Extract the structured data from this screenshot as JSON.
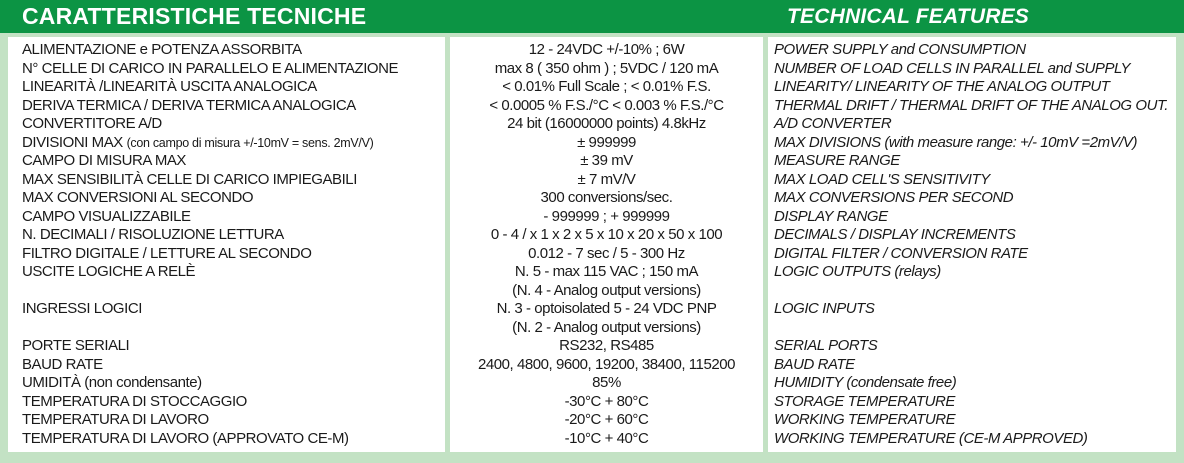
{
  "header": {
    "left_title": "CARATTERISTICHE TECNICHE",
    "right_title": "TECHNICAL FEATURES"
  },
  "colors": {
    "header_green": "#0c9444",
    "background_green": "#c3e2c4"
  },
  "rows": [
    {
      "it": "ALIMENTAZIONE e POTENZA ASSORBITA",
      "value": "12 - 24VDC  +/-10% ; 6W",
      "en": "POWER SUPPLY and CONSUMPTION"
    },
    {
      "it": "N° CELLE DI CARICO IN PARALLELO E ALIMENTAZIONE",
      "value": "max 8 ( 350 ohm ) ; 5VDC / 120 mA",
      "en": "NUMBER OF LOAD CELLS IN PARALLEL and SUPPLY"
    },
    {
      "it": "LINEARITÀ /LINEARITÀ USCITA ANALOGICA",
      "value": "< 0.01% Full Scale ; < 0.01% F.S.",
      "en": "LINEARITY/ LINEARITY OF THE ANALOG OUTPUT"
    },
    {
      "it": "DERIVA TERMICA / DERIVA TERMICA ANALOGICA",
      "value": "< 0.0005 % F.S./°C < 0.003 % F.S./°C",
      "en": "THERMAL DRIFT / THERMAL DRIFT OF THE ANALOG OUT."
    },
    {
      "it": "CONVERTITORE A/D",
      "value": "24 bit (16000000 points) 4.8kHz",
      "en": "A/D CONVERTER"
    },
    {
      "it": "DIVISIONI MAX",
      "it_note": "(con campo di misura +/-10mV = sens. 2mV/V)",
      "value": "± 999999",
      "en": "MAX DIVISIONS (with measure range: +/- 10mV =2mV/V)"
    },
    {
      "it": "CAMPO DI MISURA MAX",
      "value": "± 39 mV",
      "en": "MEASURE RANGE"
    },
    {
      "it": "MAX SENSIBILITÀ CELLE DI CARICO IMPIEGABILI",
      "value": "± 7 mV/V",
      "en": "MAX LOAD CELL'S SENSITIVITY"
    },
    {
      "it": "MAX CONVERSIONI AL SECONDO",
      "value": "300 conversions/sec.",
      "en": "MAX CONVERSIONS PER SECOND"
    },
    {
      "it": "CAMPO VISUALIZZABILE",
      "value": "- 999999 ; + 999999",
      "en": "DISPLAY RANGE"
    },
    {
      "it": "N. DECIMALI / RISOLUZIONE LETTURA",
      "value": "0 - 4 / x 1 x 2 x 5 x 10 x 20 x 50 x 100",
      "en": "DECIMALS / DISPLAY INCREMENTS"
    },
    {
      "it": "FILTRO DIGITALE / LETTURE AL SECONDO",
      "value": "0.012 - 7 sec / 5 - 300 Hz",
      "en": "DIGITAL FILTER / CONVERSION RATE"
    },
    {
      "it": "USCITE LOGICHE A RELÈ",
      "value": "N. 5 - max 115 VAC ; 150 mA",
      "en": "LOGIC OUTPUTS (relays)"
    },
    {
      "it": "",
      "value": "(N. 4 - Analog output versions)",
      "en": ""
    },
    {
      "it": "INGRESSI LOGICI",
      "value": "N. 3 - optoisolated 5 - 24 VDC PNP",
      "en": "LOGIC INPUTS"
    },
    {
      "it": "",
      "value": "(N. 2 - Analog output versions)",
      "en": ""
    },
    {
      "it": "PORTE SERIALI",
      "value": "RS232, RS485",
      "en": "SERIAL PORTS"
    },
    {
      "it": "BAUD RATE",
      "value": "2400, 4800, 9600, 19200, 38400, 115200",
      "en": "BAUD RATE"
    },
    {
      "it": "UMIDITÀ (non condensante)",
      "value": "85%",
      "en": "HUMIDITY (condensate free)"
    },
    {
      "it": "TEMPERATURA DI STOCCAGGIO",
      "value": "-30°C + 80°C",
      "en": "STORAGE TEMPERATURE"
    },
    {
      "it": "TEMPERATURA DI LAVORO",
      "value": "-20°C + 60°C",
      "en": "WORKING TEMPERATURE"
    },
    {
      "it": "TEMPERATURA DI LAVORO (APPROVATO CE-M)",
      "value": "-10°C + 40°C",
      "en": "WORKING TEMPERATURE (CE-M APPROVED)"
    }
  ]
}
